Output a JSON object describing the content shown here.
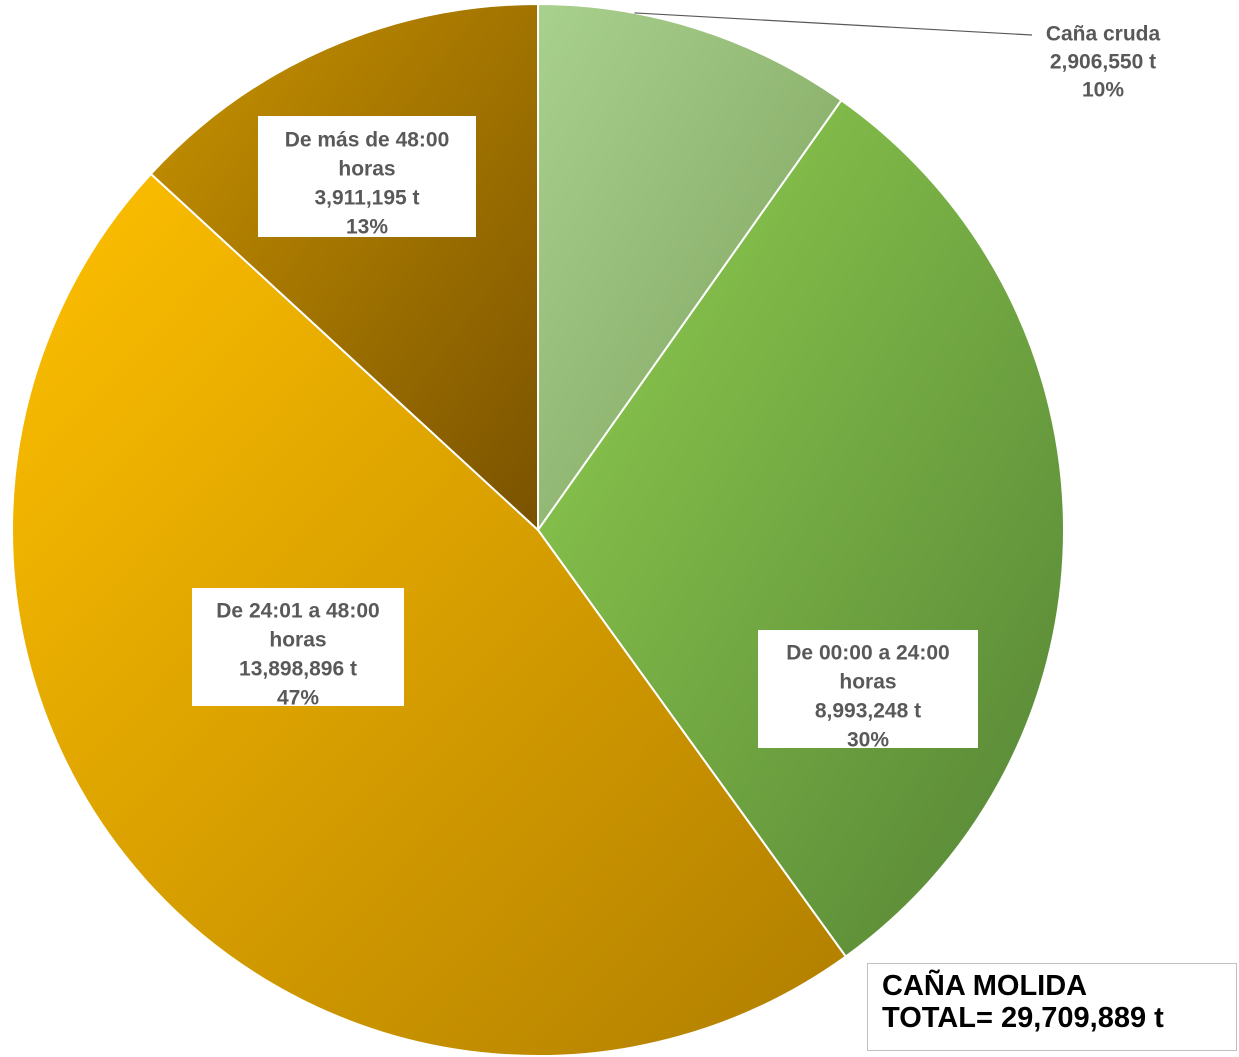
{
  "chart_data": {
    "type": "pie",
    "title": "",
    "unit": "t",
    "slices": [
      {
        "name": "Caña cruda",
        "value": 2906550,
        "value_label": "2,906,550 t",
        "percent_label": "10%",
        "color_light": "#a9d18e",
        "color_dark": "#7ba05b"
      },
      {
        "name": "De 00:00 a 24:00 horas",
        "name_lines": [
          "De 00:00 a 24:00",
          "horas"
        ],
        "value": 8993248,
        "value_label": "8,993,248 t",
        "percent_label": "30%",
        "color_light": "#92d050",
        "color_dark": "#548235"
      },
      {
        "name": "De 24:01 a 48:00 horas",
        "name_lines": [
          "De 24:01 a 48:00",
          "horas"
        ],
        "value": 13898896,
        "value_label": "13,898,896 t",
        "percent_label": "47%",
        "color_light": "#ffc000",
        "color_dark": "#b07e00"
      },
      {
        "name": "De más de 48:00 horas",
        "name_lines": [
          "De más de 48:00",
          "horas"
        ],
        "value": 3911195,
        "value_label": "3,911,195 t",
        "percent_label": "13%",
        "color_light": "#c99400",
        "color_dark": "#7a5200"
      }
    ]
  },
  "total_box": {
    "line1": "CAÑA MOLIDA",
    "line2": "TOTAL= 29,709,889 t"
  }
}
